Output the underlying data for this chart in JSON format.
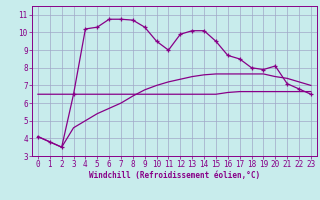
{
  "x": [
    0,
    1,
    2,
    3,
    4,
    5,
    6,
    7,
    8,
    9,
    10,
    11,
    12,
    13,
    14,
    15,
    16,
    17,
    18,
    19,
    20,
    21,
    22,
    23
  ],
  "line1": [
    4.1,
    3.8,
    3.5,
    6.5,
    10.2,
    10.3,
    10.75,
    10.75,
    10.7,
    10.3,
    9.5,
    9.0,
    9.9,
    10.1,
    10.1,
    9.5,
    8.7,
    8.5,
    8.0,
    7.9,
    8.1,
    7.1,
    6.8,
    6.5
  ],
  "line2": [
    6.5,
    6.5,
    6.5,
    6.5,
    6.5,
    6.5,
    6.5,
    6.5,
    6.5,
    6.5,
    6.5,
    6.5,
    6.5,
    6.5,
    6.5,
    6.5,
    6.6,
    6.65,
    6.65,
    6.65,
    6.65,
    6.65,
    6.65,
    6.65
  ],
  "line3": [
    4.1,
    3.8,
    3.5,
    4.6,
    5.0,
    5.4,
    5.7,
    6.0,
    6.4,
    6.75,
    7.0,
    7.2,
    7.35,
    7.5,
    7.6,
    7.65,
    7.65,
    7.65,
    7.65,
    7.65,
    7.5,
    7.4,
    7.2,
    7.0
  ],
  "line_color": "#880088",
  "bg_color": "#c8ecec",
  "grid_color": "#a0a8c8",
  "xlabel": "Windchill (Refroidissement éolien,°C)",
  "xlim": [
    -0.5,
    23.5
  ],
  "ylim": [
    3,
    11.5
  ],
  "yticks": [
    3,
    4,
    5,
    6,
    7,
    8,
    9,
    10,
    11
  ],
  "xticks": [
    0,
    1,
    2,
    3,
    4,
    5,
    6,
    7,
    8,
    9,
    10,
    11,
    12,
    13,
    14,
    15,
    16,
    17,
    18,
    19,
    20,
    21,
    22,
    23
  ],
  "tick_fontsize": 5.5,
  "xlabel_fontsize": 5.5
}
